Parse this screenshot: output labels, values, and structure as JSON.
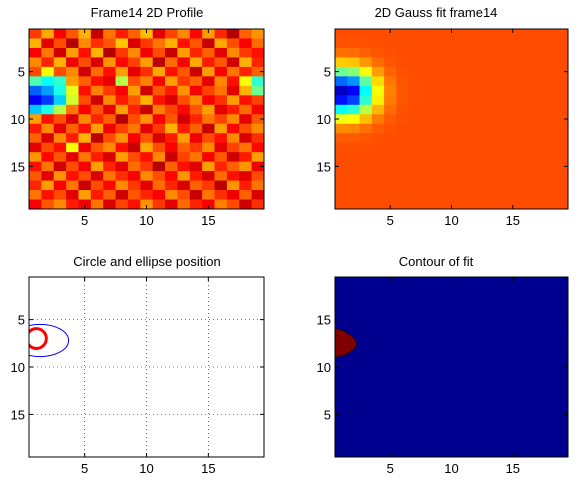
{
  "chart_data": [
    {
      "type": "heatmap",
      "title": "Frame14 2D Profile",
      "xlim": [
        0.5,
        19.5
      ],
      "ylim": [
        0.5,
        19.5
      ],
      "y_direction": "reversed",
      "xticks": [
        5,
        10,
        15
      ],
      "yticks": [
        5,
        10,
        15
      ],
      "tick_labels_x": [
        "5",
        "10",
        "15"
      ],
      "tick_labels_y": [
        "5",
        "10",
        "15"
      ],
      "grid": false,
      "colormap": "jet",
      "color_range": [
        0,
        1
      ],
      "data": [
        [
          0.82,
          0.71,
          0.88,
          0.79,
          0.7,
          0.93,
          0.76,
          0.85,
          0.78,
          0.69,
          0.9,
          0.81,
          0.74,
          0.87,
          0.72,
          0.84,
          0.95,
          0.78,
          0.73
        ],
        [
          0.7,
          0.9,
          0.8,
          0.95,
          0.74,
          0.83,
          0.79,
          0.68,
          0.91,
          0.82,
          0.76,
          0.7,
          0.86,
          0.79,
          0.93,
          0.71,
          0.8,
          0.88,
          0.77
        ],
        [
          0.88,
          0.76,
          0.92,
          0.72,
          0.86,
          0.7,
          0.95,
          0.82,
          0.74,
          0.89,
          0.8,
          0.93,
          0.72,
          0.84,
          0.78,
          0.9,
          0.74,
          0.82,
          0.86
        ],
        [
          0.74,
          0.84,
          0.7,
          0.89,
          0.8,
          0.91,
          0.73,
          0.87,
          0.81,
          0.72,
          0.94,
          0.77,
          0.88,
          0.71,
          0.85,
          0.79,
          0.92,
          0.7,
          0.84
        ],
        [
          0.8,
          0.62,
          0.8,
          0.74,
          0.92,
          0.77,
          0.86,
          0.72,
          0.9,
          0.83,
          0.71,
          0.86,
          0.79,
          0.93,
          0.72,
          0.88,
          0.76,
          0.84,
          0.78
        ],
        [
          0.45,
          0.38,
          0.42,
          0.72,
          0.78,
          0.86,
          0.9,
          0.55,
          0.8,
          0.75,
          0.88,
          0.72,
          0.82,
          0.78,
          0.9,
          0.74,
          0.86,
          0.62,
          0.42
        ],
        [
          0.22,
          0.28,
          0.4,
          0.6,
          0.86,
          0.75,
          0.82,
          0.88,
          0.72,
          0.92,
          0.79,
          0.85,
          0.73,
          0.88,
          0.81,
          0.76,
          0.9,
          0.7,
          0.48
        ],
        [
          0.12,
          0.18,
          0.33,
          0.58,
          0.8,
          0.92,
          0.74,
          0.85,
          0.79,
          0.7,
          0.86,
          0.91,
          0.8,
          0.74,
          0.88,
          0.83,
          0.72,
          0.86,
          0.81
        ],
        [
          0.32,
          0.4,
          0.55,
          0.76,
          0.88,
          0.79,
          0.9,
          0.72,
          0.84,
          0.93,
          0.75,
          0.81,
          0.87,
          0.79,
          0.72,
          0.9,
          0.85,
          0.77,
          0.88
        ],
        [
          0.72,
          0.86,
          0.8,
          0.91,
          0.74,
          0.84,
          0.78,
          0.95,
          0.8,
          0.73,
          0.88,
          0.79,
          0.92,
          0.84,
          0.76,
          0.81,
          0.74,
          0.9,
          0.79
        ],
        [
          0.85,
          0.74,
          0.9,
          0.78,
          0.86,
          0.72,
          0.89,
          0.81,
          0.76,
          0.9,
          0.82,
          0.7,
          0.85,
          0.78,
          0.93,
          0.72,
          0.87,
          0.8,
          0.74
        ],
        [
          0.78,
          0.91,
          0.74,
          0.85,
          0.7,
          0.94,
          0.8,
          0.73,
          0.88,
          0.79,
          0.91,
          0.85,
          0.72,
          0.89,
          0.8,
          0.86,
          0.74,
          0.91,
          0.83
        ],
        [
          0.9,
          0.8,
          0.86,
          0.62,
          0.89,
          0.79,
          0.74,
          0.86,
          0.93,
          0.71,
          0.8,
          0.88,
          0.78,
          0.82,
          0.74,
          0.9,
          0.81,
          0.76,
          0.87
        ],
        [
          0.73,
          0.87,
          0.79,
          0.9,
          0.76,
          0.85,
          0.91,
          0.72,
          0.8,
          0.86,
          0.74,
          0.93,
          0.81,
          0.76,
          0.88,
          0.79,
          0.92,
          0.85,
          0.72
        ],
        [
          0.86,
          0.76,
          0.92,
          0.8,
          0.88,
          0.72,
          0.84,
          0.9,
          0.77,
          0.82,
          0.95,
          0.78,
          0.86,
          0.9,
          0.72,
          0.84,
          0.78,
          0.73,
          0.89
        ],
        [
          0.79,
          0.9,
          0.73,
          0.86,
          0.8,
          0.91,
          0.76,
          0.83,
          0.88,
          0.74,
          0.8,
          0.87,
          0.73,
          0.85,
          0.91,
          0.77,
          0.86,
          0.9,
          0.8
        ],
        [
          0.84,
          0.72,
          0.88,
          0.76,
          0.93,
          0.8,
          0.87,
          0.74,
          0.82,
          0.9,
          0.77,
          0.84,
          0.91,
          0.78,
          0.82,
          0.94,
          0.73,
          0.85,
          0.76
        ],
        [
          0.76,
          0.86,
          0.8,
          0.9,
          0.72,
          0.85,
          0.78,
          0.92,
          0.79,
          0.84,
          0.88,
          0.74,
          0.8,
          0.93,
          0.76,
          0.83,
          0.89,
          0.78,
          0.91
        ],
        [
          0.88,
          0.79,
          0.74,
          0.85,
          0.89,
          0.76,
          0.91,
          0.81,
          0.86,
          0.73,
          0.82,
          0.9,
          0.77,
          0.84,
          0.88,
          0.75,
          0.8,
          0.92,
          0.83
        ]
      ]
    },
    {
      "type": "heatmap",
      "title": "2D Gauss fit frame14",
      "xlim": [
        0.5,
        19.5
      ],
      "ylim": [
        0.5,
        19.5
      ],
      "y_direction": "reversed",
      "xticks": [
        5,
        10,
        15
      ],
      "yticks": [
        5,
        10,
        15
      ],
      "tick_labels_x": [
        "5",
        "10",
        "15"
      ],
      "tick_labels_y": [
        "5",
        "10",
        "15"
      ],
      "grid": false,
      "colormap": "jet",
      "color_range": [
        0,
        1
      ],
      "model": {
        "kind": "2d-gaussian",
        "baseline": 0.8,
        "amplitude": -0.75,
        "center_x": 1.3,
        "center_y": 7.2,
        "sigma_x": 1.6,
        "sigma_y": 1.7
      }
    },
    {
      "type": "scatter",
      "title": "Circle and ellipse position",
      "xlim": [
        0.5,
        19.5
      ],
      "ylim": [
        0.5,
        19.5
      ],
      "y_direction": "reversed",
      "xticks": [
        5,
        10,
        15
      ],
      "yticks": [
        5,
        10,
        15
      ],
      "tick_labels_x": [
        "5",
        "10",
        "15"
      ],
      "tick_labels_y": [
        "5",
        "10",
        "15"
      ],
      "grid": true,
      "shapes": [
        {
          "name": "ellipse",
          "center_x": 1.4,
          "center_y": 7.2,
          "radius_x": 2.3,
          "radius_y": 1.7,
          "color": "#0000ff"
        },
        {
          "name": "circle",
          "center_x": 1.1,
          "center_y": 7.0,
          "radius": 0.8,
          "color": "#ff0000"
        }
      ]
    },
    {
      "type": "contour",
      "title": "Contour of fit",
      "xlim": [
        0.5,
        19.5
      ],
      "ylim": [
        0.5,
        19.5
      ],
      "y_direction": "normal",
      "xticks": [
        5,
        10,
        15
      ],
      "yticks": [
        5,
        10,
        15
      ],
      "tick_labels_x": [
        "5",
        "10",
        "15"
      ],
      "tick_labels_y": [
        "5",
        "10",
        "15"
      ],
      "grid": false,
      "background_color": "#00008f",
      "region": {
        "color": "#800000",
        "outline": [
          [
            0.5,
            14.1
          ],
          [
            1.3,
            13.8
          ],
          [
            2.0,
            13.1
          ],
          [
            2.3,
            12.6
          ],
          [
            2.1,
            11.9
          ],
          [
            1.4,
            11.3
          ],
          [
            0.5,
            11.0
          ]
        ]
      }
    }
  ]
}
